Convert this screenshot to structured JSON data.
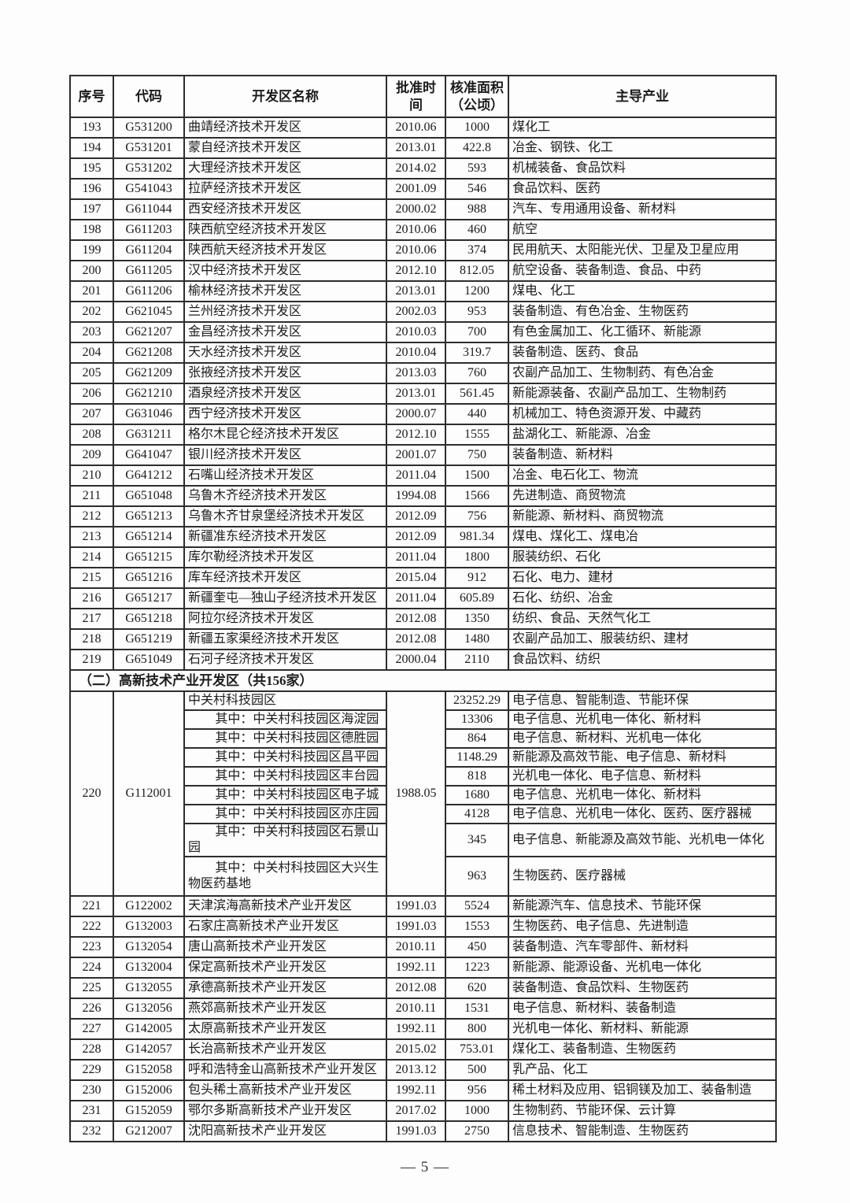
{
  "document": {
    "page_number": "— 5 —"
  },
  "table": {
    "columns": [
      {
        "key": "no",
        "label": "序号"
      },
      {
        "key": "code",
        "label": "代码"
      },
      {
        "key": "name",
        "label": "开发区名称"
      },
      {
        "key": "date",
        "label": "批准时间"
      },
      {
        "key": "area",
        "label": "核准面积\n（公顷）"
      },
      {
        "key": "industry",
        "label": "主导产业"
      }
    ],
    "rows_etdz": [
      {
        "no": "193",
        "code": "G531200",
        "name": "曲靖经济技术开发区",
        "date": "2010.06",
        "area": "1000",
        "industry": "煤化工"
      },
      {
        "no": "194",
        "code": "G531201",
        "name": "蒙自经济技术开发区",
        "date": "2013.01",
        "area": "422.8",
        "industry": "冶金、钢铁、化工"
      },
      {
        "no": "195",
        "code": "G531202",
        "name": "大理经济技术开发区",
        "date": "2014.02",
        "area": "593",
        "industry": "机械装备、食品饮料"
      },
      {
        "no": "196",
        "code": "G541043",
        "name": "拉萨经济技术开发区",
        "date": "2001.09",
        "area": "546",
        "industry": "食品饮料、医药"
      },
      {
        "no": "197",
        "code": "G611044",
        "name": "西安经济技术开发区",
        "date": "2000.02",
        "area": "988",
        "industry": "汽车、专用通用设备、新材料"
      },
      {
        "no": "198",
        "code": "G611203",
        "name": "陕西航空经济技术开发区",
        "date": "2010.06",
        "area": "460",
        "industry": "航空"
      },
      {
        "no": "199",
        "code": "G611204",
        "name": "陕西航天经济技术开发区",
        "date": "2010.06",
        "area": "374",
        "industry": "民用航天、太阳能光伏、卫星及卫星应用"
      },
      {
        "no": "200",
        "code": "G611205",
        "name": "汉中经济技术开发区",
        "date": "2012.10",
        "area": "812.05",
        "industry": "航空设备、装备制造、食品、中药"
      },
      {
        "no": "201",
        "code": "G611206",
        "name": "榆林经济技术开发区",
        "date": "2013.01",
        "area": "1200",
        "industry": "煤电、化工"
      },
      {
        "no": "202",
        "code": "G621045",
        "name": "兰州经济技术开发区",
        "date": "2002.03",
        "area": "953",
        "industry": "装备制造、有色冶金、生物医药"
      },
      {
        "no": "203",
        "code": "G621207",
        "name": "金昌经济技术开发区",
        "date": "2010.03",
        "area": "700",
        "industry": "有色金属加工、化工循环、新能源"
      },
      {
        "no": "204",
        "code": "G621208",
        "name": "天水经济技术开发区",
        "date": "2010.04",
        "area": "319.7",
        "industry": "装备制造、医药、食品"
      },
      {
        "no": "205",
        "code": "G621209",
        "name": "张掖经济技术开发区",
        "date": "2013.03",
        "area": "760",
        "industry": "农副产品加工、生物制药、有色冶金"
      },
      {
        "no": "206",
        "code": "G621210",
        "name": "酒泉经济技术开发区",
        "date": "2013.01",
        "area": "561.45",
        "industry": "新能源装备、农副产品加工、生物制药"
      },
      {
        "no": "207",
        "code": "G631046",
        "name": "西宁经济技术开发区",
        "date": "2000.07",
        "area": "440",
        "industry": "机械加工、特色资源开发、中藏药"
      },
      {
        "no": "208",
        "code": "G631211",
        "name": "格尔木昆仑经济技术开发区",
        "date": "2012.10",
        "area": "1555",
        "industry": "盐湖化工、新能源、冶金"
      },
      {
        "no": "209",
        "code": "G641047",
        "name": "银川经济技术开发区",
        "date": "2001.07",
        "area": "750",
        "industry": "装备制造、新材料"
      },
      {
        "no": "210",
        "code": "G641212",
        "name": "石嘴山经济技术开发区",
        "date": "2011.04",
        "area": "1500",
        "industry": "冶金、电石化工、物流"
      },
      {
        "no": "211",
        "code": "G651048",
        "name": "乌鲁木齐经济技术开发区",
        "date": "1994.08",
        "area": "1566",
        "industry": "先进制造、商贸物流"
      },
      {
        "no": "212",
        "code": "G651213",
        "name": "乌鲁木齐甘泉堡经济技术开发区",
        "date": "2012.09",
        "area": "756",
        "industry": "新能源、新材料、商贸物流"
      },
      {
        "no": "213",
        "code": "G651214",
        "name": "新疆准东经济技术开发区",
        "date": "2012.09",
        "area": "981.34",
        "industry": "煤电、煤化工、煤电冶"
      },
      {
        "no": "214",
        "code": "G651215",
        "name": "库尔勒经济技术开发区",
        "date": "2011.04",
        "area": "1800",
        "industry": "服装纺织、石化"
      },
      {
        "no": "215",
        "code": "G651216",
        "name": "库车经济技术开发区",
        "date": "2015.04",
        "area": "912",
        "industry": "石化、电力、建材"
      },
      {
        "no": "216",
        "code": "G651217",
        "name": "新疆奎屯—独山子经济技术开发区",
        "date": "2011.04",
        "area": "605.89",
        "industry": "石化、纺织、冶金"
      },
      {
        "no": "217",
        "code": "G651218",
        "name": "阿拉尔经济技术开发区",
        "date": "2012.08",
        "area": "1350",
        "industry": "纺织、食品、天然气化工"
      },
      {
        "no": "218",
        "code": "G651219",
        "name": "新疆五家渠经济技术开发区",
        "date": "2012.08",
        "area": "1480",
        "industry": "农副产品加工、服装纺织、建材"
      },
      {
        "no": "219",
        "code": "G651049",
        "name": "石河子经济技术开发区",
        "date": "2000.04",
        "area": "2110",
        "industry": "食品饮料、纺织"
      }
    ],
    "section_header": "（二）高新技术产业开发区（共156家）",
    "row_220": {
      "no": "220",
      "code": "G112001",
      "date": "1988.05",
      "subrows": [
        {
          "name": "中关村科技园区",
          "area": "23252.29",
          "industry": "电子信息、智能制造、节能环保"
        },
        {
          "name": "其中：中关村科技园区海淀园",
          "area": "13306",
          "industry": "电子信息、光机电一体化、新材料"
        },
        {
          "name": "其中：中关村科技园区德胜园",
          "area": "864",
          "industry": "电子信息、新材料、光机电一体化"
        },
        {
          "name": "其中：中关村科技园区昌平园",
          "area": "1148.29",
          "industry": "新能源及高效节能、电子信息、新材料"
        },
        {
          "name": "其中：中关村科技园区丰台园",
          "area": "818",
          "industry": "光机电一体化、电子信息、新材料"
        },
        {
          "name": "其中：中关村科技园区电子城",
          "area": "1680",
          "industry": "电子信息、光机电一体化、新材料"
        },
        {
          "name": "其中：中关村科技园区亦庄园",
          "area": "4128",
          "industry": "电子信息、光机电一体化、医药、医疗器械"
        },
        {
          "name": "其中：中关村科技园区石景山园",
          "area": "345",
          "industry": "电子信息、新能源及高效节能、光机电一体化"
        },
        {
          "name": "其中：中关村科技园区大兴生物医药基地",
          "area": "963",
          "industry": "生物医药、医疗器械"
        }
      ]
    },
    "rows_hitech": [
      {
        "no": "221",
        "code": "G122002",
        "name": "天津滨海高新技术产业开发区",
        "date": "1991.03",
        "area": "5524",
        "industry": "新能源汽车、信息技术、节能环保"
      },
      {
        "no": "222",
        "code": "G132003",
        "name": "石家庄高新技术产业开发区",
        "date": "1991.03",
        "area": "1553",
        "industry": "生物医药、电子信息、先进制造"
      },
      {
        "no": "223",
        "code": "G132054",
        "name": "唐山高新技术产业开发区",
        "date": "2010.11",
        "area": "450",
        "industry": "装备制造、汽车零部件、新材料"
      },
      {
        "no": "224",
        "code": "G132004",
        "name": "保定高新技术产业开发区",
        "date": "1992.11",
        "area": "1223",
        "industry": "新能源、能源设备、光机电一体化"
      },
      {
        "no": "225",
        "code": "G132055",
        "name": "承德高新技术产业开发区",
        "date": "2012.08",
        "area": "620",
        "industry": "装备制造、食品饮料、生物医药"
      },
      {
        "no": "226",
        "code": "G132056",
        "name": "燕郊高新技术产业开发区",
        "date": "2010.11",
        "area": "1531",
        "industry": "电子信息、新材料、装备制造"
      },
      {
        "no": "227",
        "code": "G142005",
        "name": "太原高新技术产业开发区",
        "date": "1992.11",
        "area": "800",
        "industry": "光机电一体化、新材料、新能源"
      },
      {
        "no": "228",
        "code": "G142057",
        "name": "长治高新技术产业开发区",
        "date": "2015.02",
        "area": "753.01",
        "industry": "煤化工、装备制造、生物医药"
      },
      {
        "no": "229",
        "code": "G152058",
        "name": "呼和浩特金山高新技术产业开发区",
        "date": "2013.12",
        "area": "500",
        "industry": "乳产品、化工"
      },
      {
        "no": "230",
        "code": "G152006",
        "name": "包头稀土高新技术产业开发区",
        "date": "1992.11",
        "area": "956",
        "industry": "稀土材料及应用、铝铜镁及加工、装备制造"
      },
      {
        "no": "231",
        "code": "G152059",
        "name": "鄂尔多斯高新技术产业开发区",
        "date": "2017.02",
        "area": "1000",
        "industry": "生物制药、节能环保、云计算"
      },
      {
        "no": "232",
        "code": "G212007",
        "name": "沈阳高新技术产业开发区",
        "date": "1991.03",
        "area": "2750",
        "industry": "信息技术、智能制造、生物医药"
      }
    ]
  }
}
